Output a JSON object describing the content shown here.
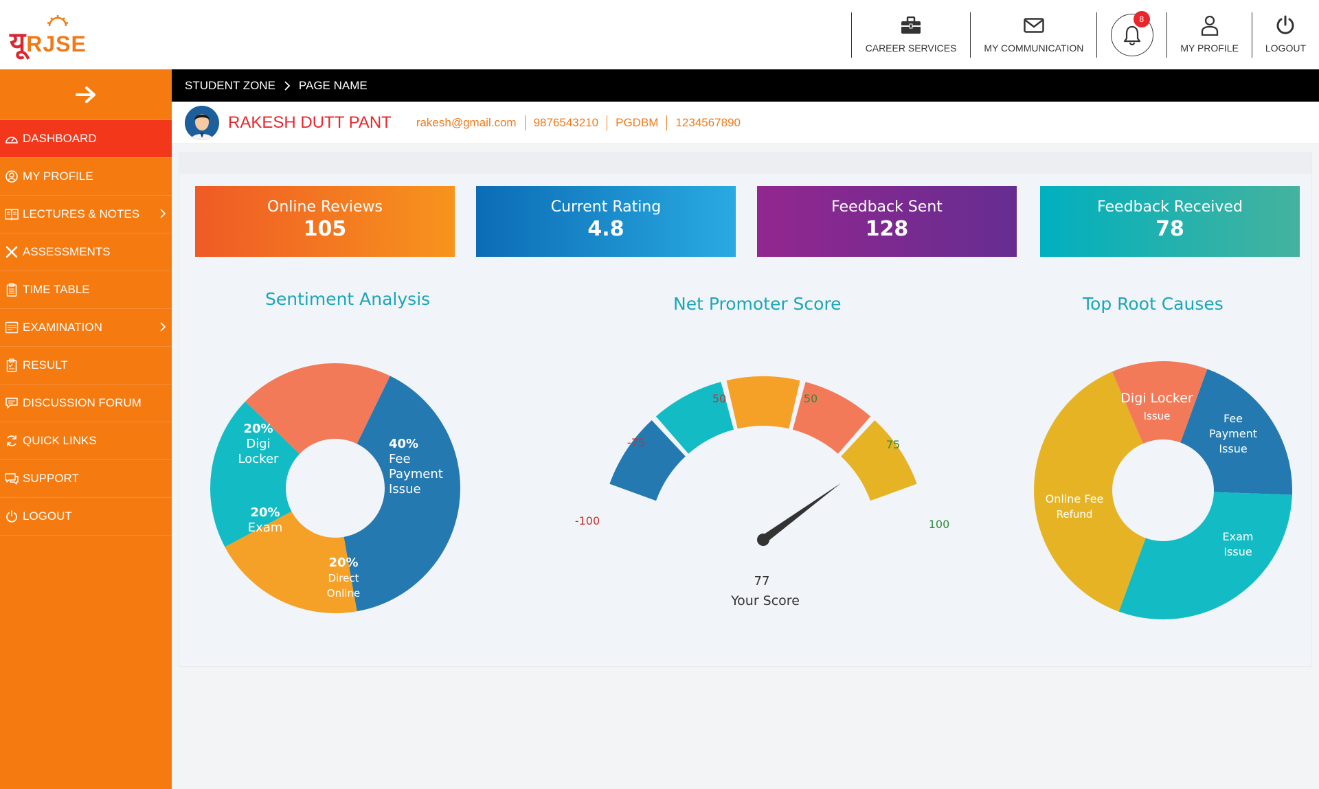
{
  "header": {
    "logo_text_primary": "यू",
    "logo_text_rest": "RJSE",
    "nav": [
      {
        "label": "CAREER SERVICES",
        "icon": "briefcase-icon"
      },
      {
        "label": "MY COMMUNICATION",
        "icon": "envelope-icon"
      },
      {
        "label": "MY PROFILE",
        "icon": "user-icon"
      },
      {
        "label": "LOGOUT",
        "icon": "power-icon"
      }
    ],
    "notifications": {
      "count": "8",
      "icon": "bell-icon"
    }
  },
  "sidebar": {
    "toggle_icon": "arrow-right-icon",
    "items": [
      {
        "label": "DASHBOARD",
        "icon": "speedometer-icon",
        "active": true
      },
      {
        "label": "MY PROFILE",
        "icon": "profile-icon"
      },
      {
        "label": "LECTURES & NOTES",
        "icon": "book-icon",
        "has_submenu": true
      },
      {
        "label": "ASSESSMENTS",
        "icon": "tools-icon"
      },
      {
        "label": "TIME TABLE",
        "icon": "clipboard-icon"
      },
      {
        "label": "EXAMINATION",
        "icon": "exam-icon",
        "has_submenu": true
      },
      {
        "label": "RESULT",
        "icon": "result-icon"
      },
      {
        "label": "DISCUSSION FORUM",
        "icon": "chat-icon"
      },
      {
        "label": "QUICK LINKS",
        "icon": "refresh-icon"
      },
      {
        "label": "SUPPORT",
        "icon": "support-icon"
      },
      {
        "label": "LOGOUT",
        "icon": "power-icon"
      }
    ]
  },
  "breadcrumb": {
    "root": "STUDENT ZONE",
    "current": "PAGE NAME"
  },
  "profile": {
    "name": "RAKESH DUTT PANT",
    "email": "rakesh@gmail.com",
    "phone": "9876543210",
    "program": "PGDBM",
    "id": "1234567890"
  },
  "cards": [
    {
      "title": "Online Reviews",
      "value": "105",
      "color_from": "#ef5a25",
      "color_to": "#f7941d"
    },
    {
      "title": "Current Rating",
      "value": "4.8",
      "color_from": "#0b6cb5",
      "color_to": "#29aae1"
    },
    {
      "title": "Feedback Sent",
      "value": "128",
      "color_from": "#92278f",
      "color_to": "#662d91"
    },
    {
      "title": "Feedback Received",
      "value": "78",
      "color_from": "#00b0bf",
      "color_to": "#45b29d"
    }
  ],
  "charts": {
    "sentiment_title": "Sentiment Analysis",
    "nps_title": "Net Promoter Score",
    "root_title": "Top Root Causes"
  },
  "chart_data": [
    {
      "type": "pie",
      "title": "Sentiment Analysis",
      "labels": [
        "Fee Payment Issue",
        "Direct Online",
        "Exam",
        "Digi Locker"
      ],
      "label_lines": [
        [
          "40%",
          "Fee",
          "Payment",
          "Issue"
        ],
        [
          "20%",
          "Direct",
          "Online"
        ],
        [
          "20%",
          "Exam"
        ],
        [
          "20%",
          "Digi",
          "Locker"
        ]
      ],
      "values": [
        40,
        20,
        20,
        20
      ],
      "colors": [
        "#2479b0",
        "#f5a128",
        "#13bcc4",
        "#f27a58"
      ]
    },
    {
      "type": "gauge",
      "title": "Net Promoter Score",
      "tick_labels": [
        "-100",
        "-75",
        "50",
        "50",
        "75",
        "100"
      ],
      "score": 77,
      "score_label": "Your Score",
      "colors": [
        "#2479b0",
        "#13bcc4",
        "#f5a128",
        "#f27a58",
        "#e6b325"
      ]
    },
    {
      "type": "pie",
      "title": "Top Root Causes",
      "labels": [
        "Fee Payment Issue",
        "Exam Issue",
        "Online Fee Refund",
        "Digi Locker Issue"
      ],
      "label_lines": [
        [
          "Fee",
          "Payment",
          "Issue"
        ],
        [
          "Exam",
          "Issue"
        ],
        [
          "Online Fee",
          "Refund"
        ],
        [
          "Digi Locker",
          "Issue"
        ]
      ],
      "values": [
        20,
        30,
        38,
        12
      ],
      "colors": [
        "#2479b0",
        "#13bcc4",
        "#e6b325",
        "#f27a58"
      ]
    }
  ]
}
